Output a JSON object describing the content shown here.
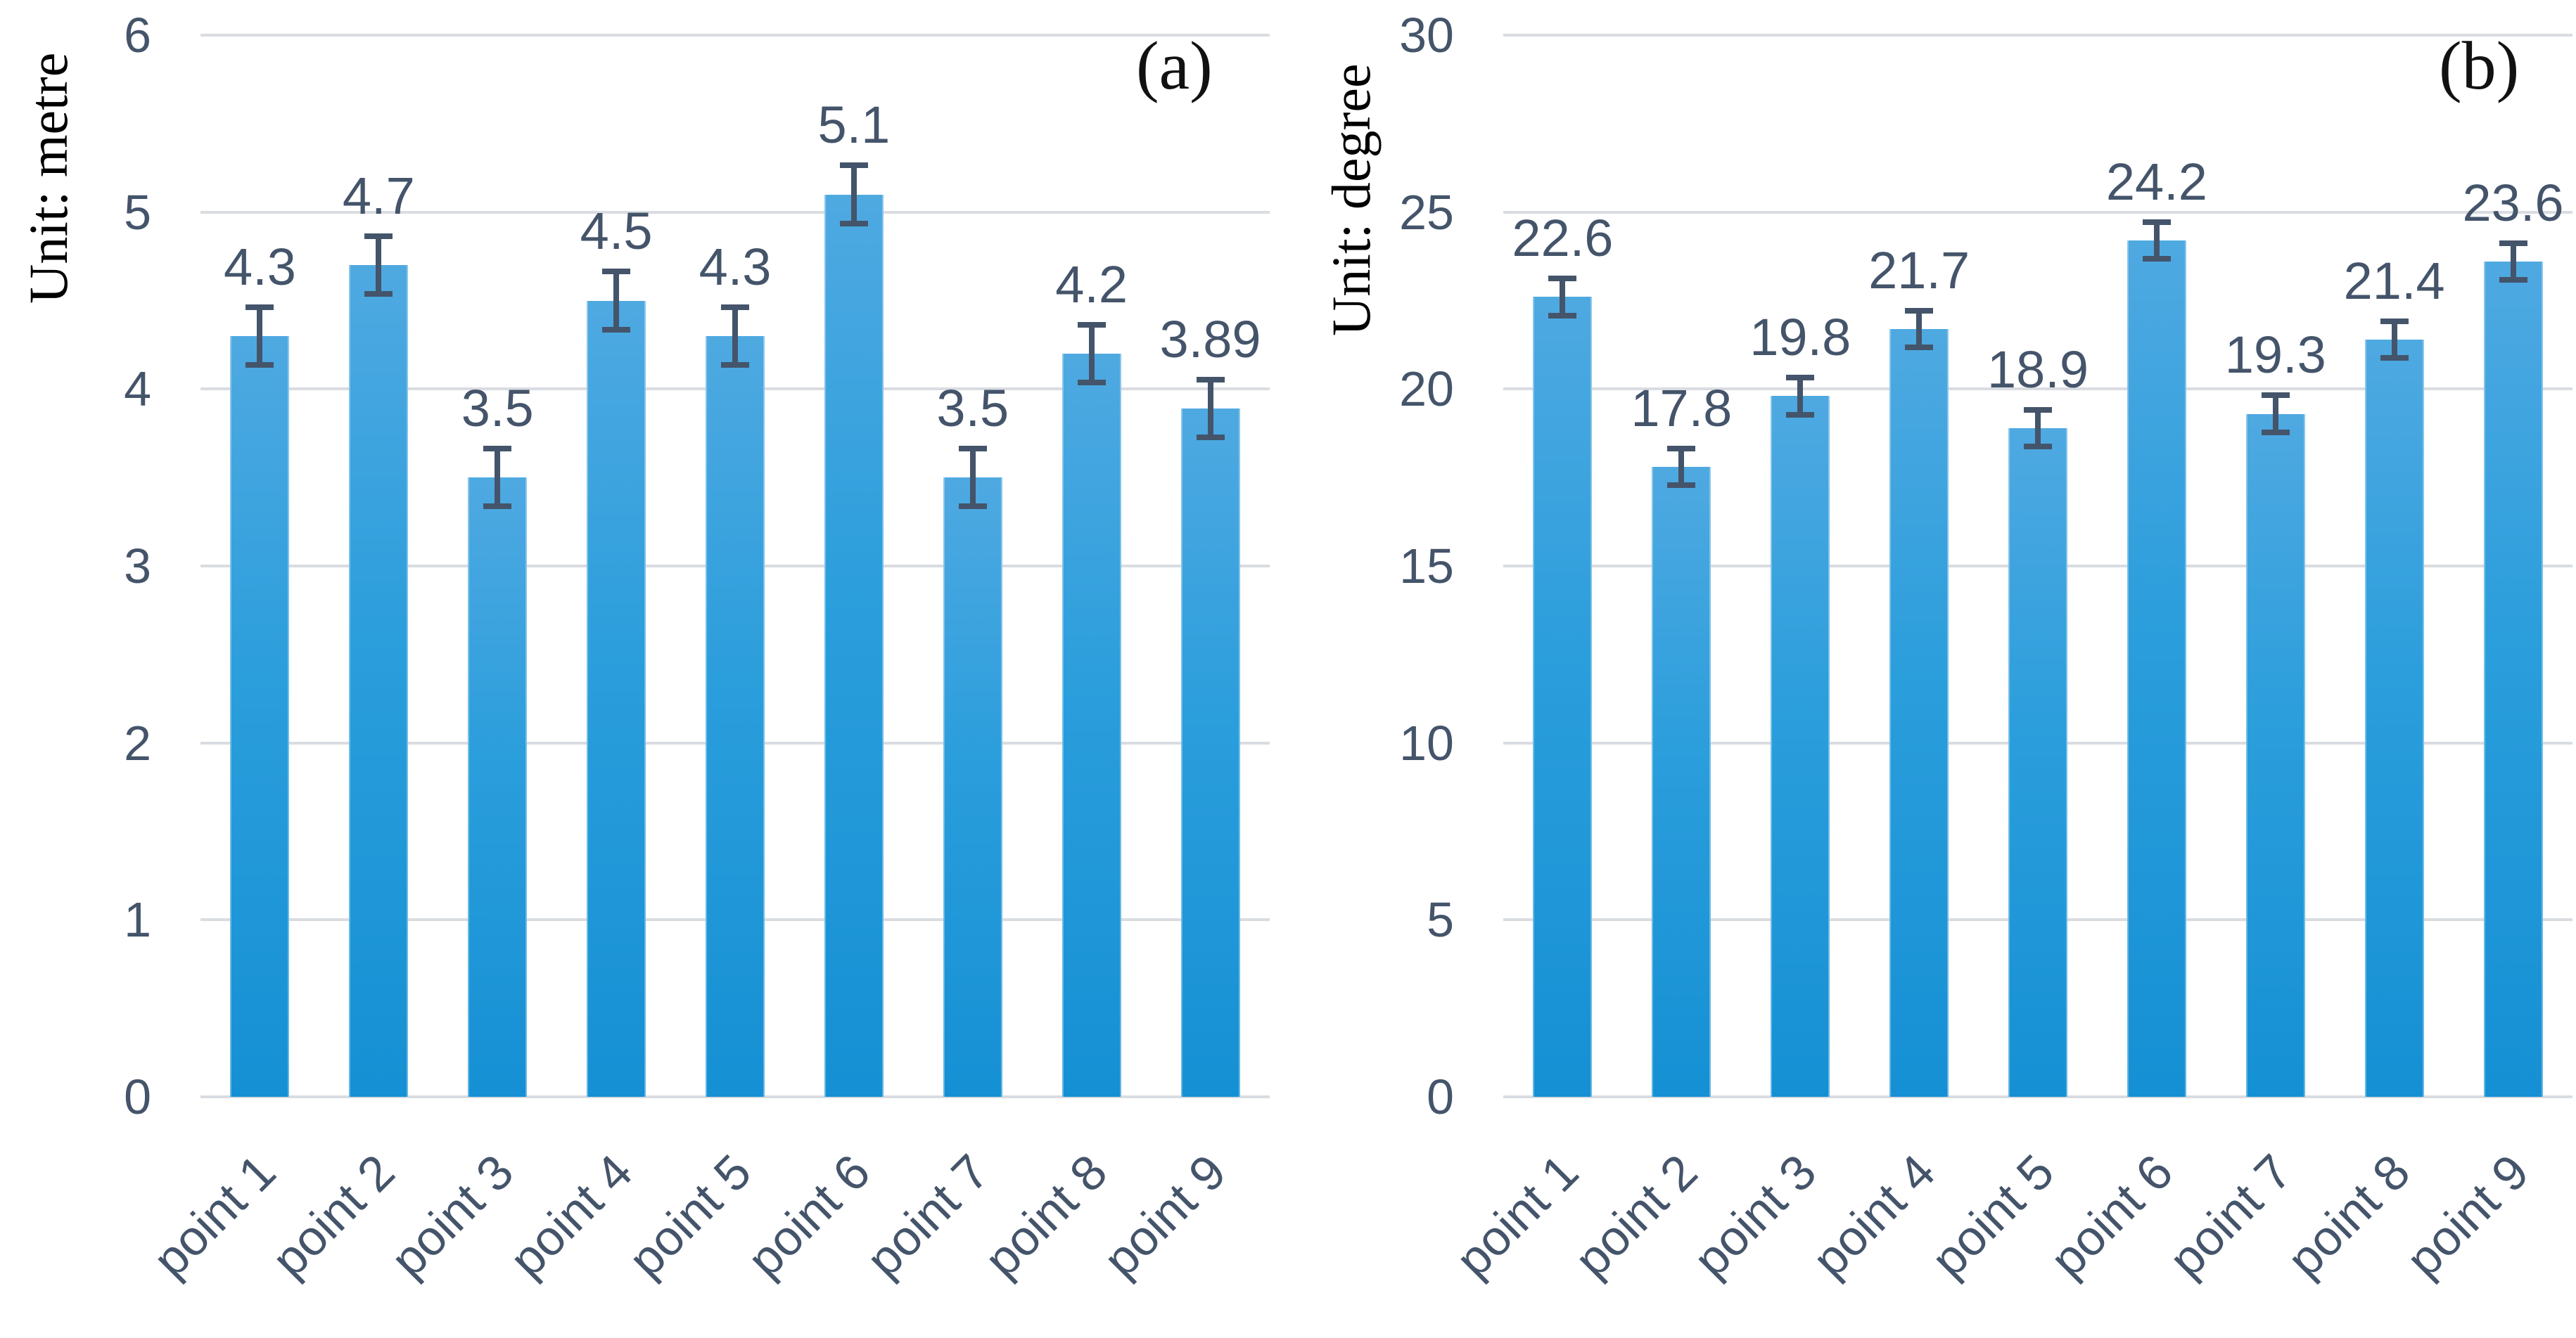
{
  "figure": {
    "description": "Two-panel bar chart figure with error bars",
    "accent_color": "#2b9edc",
    "error_bar_color": "#44546a",
    "label_color": "#44546a",
    "gridline_color": "#d9dce1"
  },
  "chart_data": [
    {
      "type": "bar",
      "panel_label": "(a)",
      "ylabel": "Unit: metre",
      "categories": [
        "point 1",
        "point 2",
        "point 3",
        "point 4",
        "point 5",
        "point 6",
        "point 7",
        "point 8",
        "point 9"
      ],
      "values": [
        4.3,
        4.7,
        3.5,
        4.5,
        4.3,
        5.1,
        3.5,
        4.2,
        3.89
      ],
      "data_labels": [
        "4.3",
        "4.7",
        "3.5",
        "4.5",
        "4.3",
        "5.1",
        "3.5",
        "4.2",
        "3.89"
      ],
      "error_bars": {
        "plus": 0.18,
        "minus": 0.18
      },
      "ylim": [
        0,
        6
      ],
      "yticks": [
        0,
        1,
        2,
        3,
        4,
        5,
        6
      ],
      "grid": true,
      "legend": "none",
      "bar_color": "#2b9edc"
    },
    {
      "type": "bar",
      "panel_label": "(b)",
      "ylabel": "Unit: degree",
      "categories": [
        "point 1",
        "point 2",
        "point 3",
        "point 4",
        "point 5",
        "point 6",
        "point 7",
        "point 8",
        "point 9"
      ],
      "values": [
        22.6,
        17.8,
        19.8,
        21.7,
        18.9,
        24.2,
        19.3,
        21.4,
        23.6
      ],
      "data_labels": [
        "22.6",
        "17.8",
        "19.8",
        "21.7",
        "18.9",
        "24.2",
        "19.3",
        "21.4",
        "23.6"
      ],
      "error_bars": {
        "plus": 0.6,
        "minus": 0.6
      },
      "ylim": [
        0,
        30
      ],
      "yticks": [
        0,
        5,
        10,
        15,
        20,
        25,
        30
      ],
      "grid": true,
      "legend": "none",
      "bar_color": "#2b9edc"
    }
  ]
}
